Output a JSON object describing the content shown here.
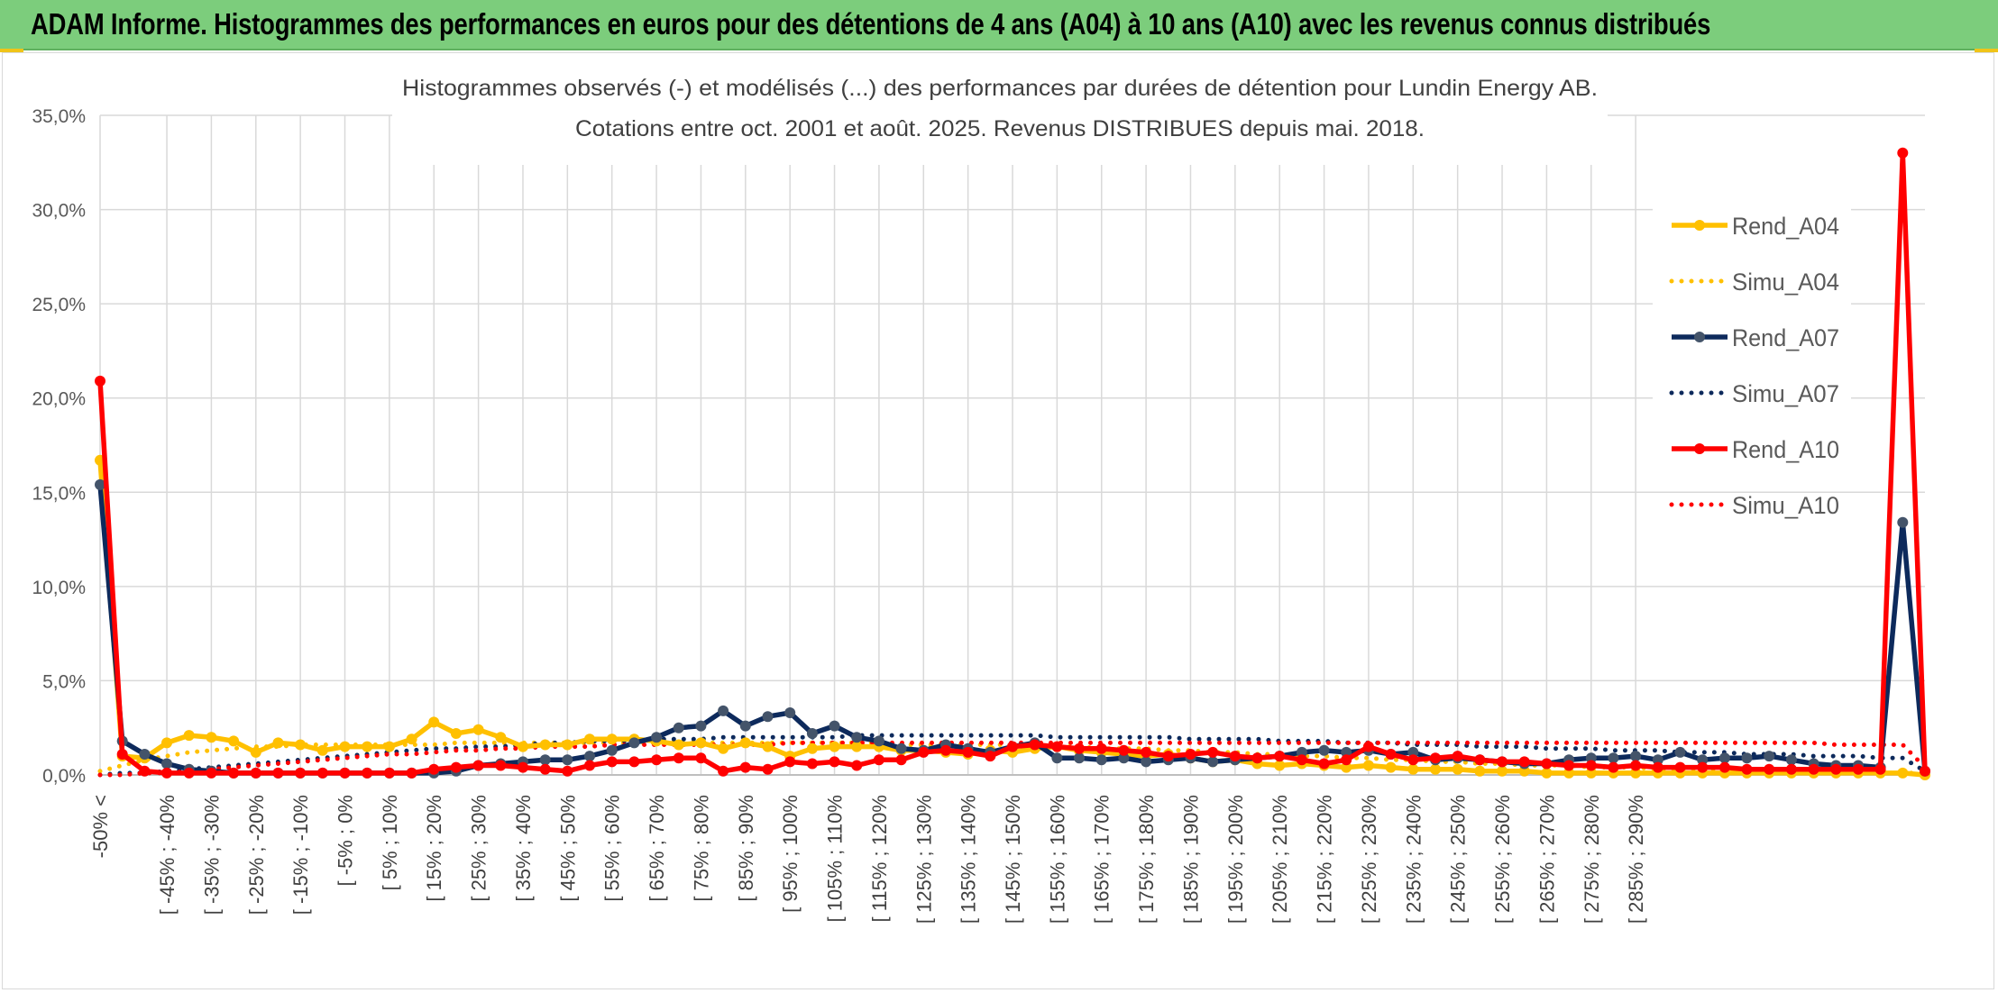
{
  "banner": {
    "title": "ADAM Informe. Histogrammes des performances en euros pour des détentions de 4 ans (A04) à 10 ans (A10) avec les revenus connus distribués",
    "background": "#7ccd7c"
  },
  "chart_data": {
    "type": "line",
    "title": "Histogrammes observés (-) et modélisés (...) des performances par durées de détention pour Lundin Energy AB.",
    "subtitle": "Cotations entre oct. 2001 et août. 2025. Revenus DISTRIBUES depuis mai. 2018.",
    "xlabel": "",
    "ylabel": "",
    "ylim": [
      0,
      35
    ],
    "y_ticks": [
      "0,0%",
      "5,0%",
      "10,0%",
      "15,0%",
      "20,0%",
      "25,0%",
      "30,0%",
      "35,0%"
    ],
    "grid": true,
    "legend_position": "top-right",
    "x_tick_labels": [
      "-50% <",
      "[ -45% ; -40%",
      "[ -35% ; -30%",
      "[ -25% ; -20%",
      "[ -15% ; -10%",
      "[ -5% ; 0%",
      "[ 5% ; 10%",
      "[ 15% ; 20%",
      "[ 25% ; 30%",
      "[ 35% ; 40%",
      "[ 45% ; 50%",
      "[ 55% ; 60%",
      "[ 65% ; 70%",
      "[ 75% ; 80%",
      "[ 85% ; 90%",
      "[ 95% ; 100%",
      "[ 105% ; 110%",
      "[ 115% ; 120%",
      "[ 125% ; 130%",
      "[ 135% ; 140%",
      "[ 145% ; 150%",
      "[ 155% ; 160%",
      "[ 165% ; 170%",
      "[ 175% ; 180%",
      "[ 185% ; 190%",
      "[ 195% ; 200%",
      "[ 205% ; 210%",
      "[ 215% ; 220%",
      "[ 225% ; 230%",
      "[ 235% ; 240%",
      "[ 245% ; 250%",
      "[ 255% ; 260%",
      "[ 265% ; 270%",
      "[ 275% ; 280%",
      "[ 285% ; 290%"
    ],
    "series": [
      {
        "name": "Rend_A04",
        "style": "solid",
        "color": "#ffc000",
        "values": [
          16.7,
          1.0,
          0.9,
          1.7,
          2.1,
          2.0,
          1.8,
          1.2,
          1.7,
          1.6,
          1.3,
          1.5,
          1.5,
          1.5,
          1.9,
          2.8,
          2.2,
          2.4,
          2.0,
          1.5,
          1.6,
          1.6,
          1.9,
          1.9,
          1.9,
          1.8,
          1.6,
          1.7,
          1.4,
          1.7,
          1.5,
          1.0,
          1.4,
          1.5,
          1.5,
          1.5,
          1.3,
          1.3,
          1.2,
          1.1,
          1.3,
          1.2,
          1.4,
          1.5,
          1.3,
          1.2,
          1.1,
          1.0,
          1.1,
          0.9,
          0.7,
          0.8,
          0.6,
          0.5,
          0.6,
          0.5,
          0.4,
          0.5,
          0.4,
          0.3,
          0.3,
          0.3,
          0.2,
          0.2,
          0.2,
          0.1,
          0.1,
          0.1,
          0.1,
          0.1,
          0.1,
          0.1,
          0.1,
          0.1,
          0.1,
          0.1,
          0.1,
          0.1,
          0.1,
          0.1,
          0.1,
          0.1,
          0.0
        ]
      },
      {
        "name": "Simu_A04",
        "style": "dotted",
        "color": "#ffc000",
        "values": [
          0.2,
          0.5,
          0.8,
          1.0,
          1.2,
          1.3,
          1.4,
          1.5,
          1.5,
          1.6,
          1.6,
          1.6,
          1.6,
          1.6,
          1.6,
          1.6,
          1.7,
          1.7,
          1.7,
          1.7,
          1.7,
          1.7,
          1.7,
          1.7,
          1.7,
          1.7,
          1.7,
          1.7,
          1.7,
          1.7,
          1.7,
          1.7,
          1.7,
          1.7,
          1.7,
          1.7,
          1.6,
          1.6,
          1.6,
          1.6,
          1.6,
          1.6,
          1.5,
          1.5,
          1.5,
          1.4,
          1.4,
          1.4,
          1.3,
          1.3,
          1.2,
          1.2,
          1.1,
          1.1,
          1.0,
          1.0,
          0.9,
          0.9,
          0.8,
          0.8,
          0.7,
          0.7,
          0.6,
          0.6,
          0.5,
          0.5,
          0.5,
          0.4,
          0.4,
          0.4,
          0.3,
          0.3,
          0.3,
          0.3,
          0.2,
          0.2,
          0.2,
          0.2,
          0.2,
          0.2,
          0.1,
          0.1,
          0.1
        ]
      },
      {
        "name": "Rend_A07",
        "style": "solid",
        "color": "#0d2a5c",
        "values": [
          15.4,
          1.8,
          1.1,
          0.6,
          0.3,
          0.2,
          0.1,
          0.1,
          0.1,
          0.1,
          0.1,
          0.1,
          0.1,
          0.1,
          0.1,
          0.1,
          0.2,
          0.5,
          0.6,
          0.7,
          0.8,
          0.8,
          1.0,
          1.3,
          1.7,
          2.0,
          2.5,
          2.6,
          3.4,
          2.6,
          3.1,
          3.3,
          2.2,
          2.6,
          2.0,
          1.8,
          1.4,
          1.3,
          1.6,
          1.4,
          1.2,
          1.5,
          1.7,
          0.9,
          0.9,
          0.8,
          0.9,
          0.7,
          0.8,
          0.9,
          0.7,
          0.8,
          0.9,
          1.0,
          1.2,
          1.3,
          1.2,
          1.3,
          1.1,
          1.2,
          0.8,
          0.9,
          0.8,
          0.7,
          0.6,
          0.6,
          0.8,
          0.9,
          0.9,
          1.0,
          0.8,
          1.2,
          0.8,
          0.9,
          0.9,
          1.0,
          0.8,
          0.6,
          0.5,
          0.5,
          0.4,
          13.4,
          0.2
        ]
      },
      {
        "name": "Simu_A07",
        "style": "dotted",
        "color": "#0d2a5c",
        "values": [
          0.0,
          0.1,
          0.1,
          0.2,
          0.3,
          0.4,
          0.5,
          0.6,
          0.7,
          0.8,
          0.9,
          1.0,
          1.1,
          1.2,
          1.3,
          1.4,
          1.4,
          1.5,
          1.5,
          1.6,
          1.7,
          1.7,
          1.8,
          1.8,
          1.8,
          1.9,
          1.9,
          1.9,
          2.0,
          2.0,
          2.0,
          2.0,
          2.0,
          2.0,
          2.1,
          2.1,
          2.1,
          2.1,
          2.1,
          2.1,
          2.1,
          2.1,
          2.1,
          2.0,
          2.0,
          2.0,
          2.0,
          2.0,
          2.0,
          1.9,
          1.9,
          1.9,
          1.9,
          1.8,
          1.8,
          1.8,
          1.7,
          1.7,
          1.7,
          1.6,
          1.6,
          1.6,
          1.5,
          1.5,
          1.5,
          1.4,
          1.4,
          1.4,
          1.3,
          1.3,
          1.3,
          1.2,
          1.2,
          1.2,
          1.1,
          1.1,
          1.1,
          1.0,
          1.0,
          1.0,
          0.9,
          0.9,
          0.2
        ]
      },
      {
        "name": "Rend_A10",
        "style": "solid",
        "color": "#ff0000",
        "values": [
          20.9,
          1.1,
          0.2,
          0.1,
          0.1,
          0.1,
          0.1,
          0.1,
          0.1,
          0.1,
          0.1,
          0.1,
          0.1,
          0.1,
          0.1,
          0.3,
          0.4,
          0.5,
          0.5,
          0.4,
          0.3,
          0.2,
          0.5,
          0.7,
          0.7,
          0.8,
          0.9,
          0.9,
          0.2,
          0.4,
          0.3,
          0.7,
          0.6,
          0.7,
          0.5,
          0.8,
          0.8,
          1.2,
          1.3,
          1.2,
          1.0,
          1.5,
          1.6,
          1.5,
          1.4,
          1.4,
          1.3,
          1.2,
          1.0,
          1.1,
          1.2,
          1.0,
          0.9,
          1.0,
          0.8,
          0.6,
          0.8,
          1.5,
          1.1,
          0.8,
          0.9,
          1.0,
          0.8,
          0.7,
          0.7,
          0.6,
          0.5,
          0.5,
          0.4,
          0.5,
          0.4,
          0.4,
          0.4,
          0.4,
          0.3,
          0.3,
          0.3,
          0.3,
          0.3,
          0.3,
          0.3,
          33.0,
          0.2
        ]
      },
      {
        "name": "Simu_A10",
        "style": "dotted",
        "color": "#ff0000",
        "values": [
          0.0,
          0.0,
          0.1,
          0.1,
          0.2,
          0.3,
          0.4,
          0.5,
          0.6,
          0.7,
          0.8,
          0.9,
          1.0,
          1.1,
          1.1,
          1.2,
          1.3,
          1.3,
          1.4,
          1.4,
          1.5,
          1.5,
          1.5,
          1.6,
          1.6,
          1.6,
          1.6,
          1.6,
          1.6,
          1.6,
          1.6,
          1.7,
          1.7,
          1.7,
          1.7,
          1.7,
          1.7,
          1.7,
          1.7,
          1.7,
          1.7,
          1.7,
          1.7,
          1.7,
          1.7,
          1.7,
          1.7,
          1.7,
          1.7,
          1.7,
          1.7,
          1.7,
          1.7,
          1.7,
          1.7,
          1.7,
          1.7,
          1.7,
          1.7,
          1.7,
          1.7,
          1.7,
          1.7,
          1.7,
          1.7,
          1.7,
          1.7,
          1.7,
          1.7,
          1.7,
          1.7,
          1.7,
          1.7,
          1.7,
          1.7,
          1.7,
          1.7,
          1.7,
          1.6,
          1.6,
          1.6,
          1.6,
          0.4
        ]
      }
    ]
  }
}
